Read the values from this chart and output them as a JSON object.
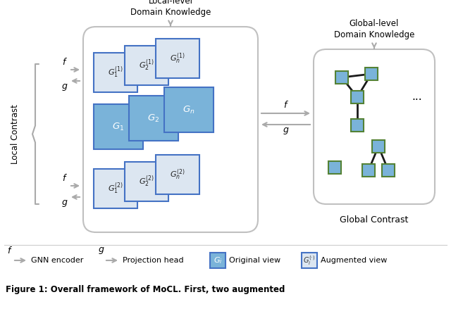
{
  "bg_color": "#ffffff",
  "blue_fill": "#7ab3d9",
  "blue_border": "#4472c4",
  "light_fill": "#dce6f1",
  "node_fill": "#7ab3d9",
  "node_border": "#548235",
  "arrow_color": "#aaaaaa",
  "line_color": "#1a1a1a",
  "local_contrast_label": "Local Contrast",
  "global_contrast_label": "Global Contrast",
  "local_knowledge_label": "Local-level\nDomain Knowledge",
  "global_knowledge_label": "Global-level\nDomain Knowledge",
  "legend_gnn": "GNN encoder",
  "legend_proj": "Projection head",
  "legend_orig": "Original view",
  "legend_aug": "Augmented view",
  "figure_caption": "Figure 1: Overall framework of MoCL. First, two augmented"
}
